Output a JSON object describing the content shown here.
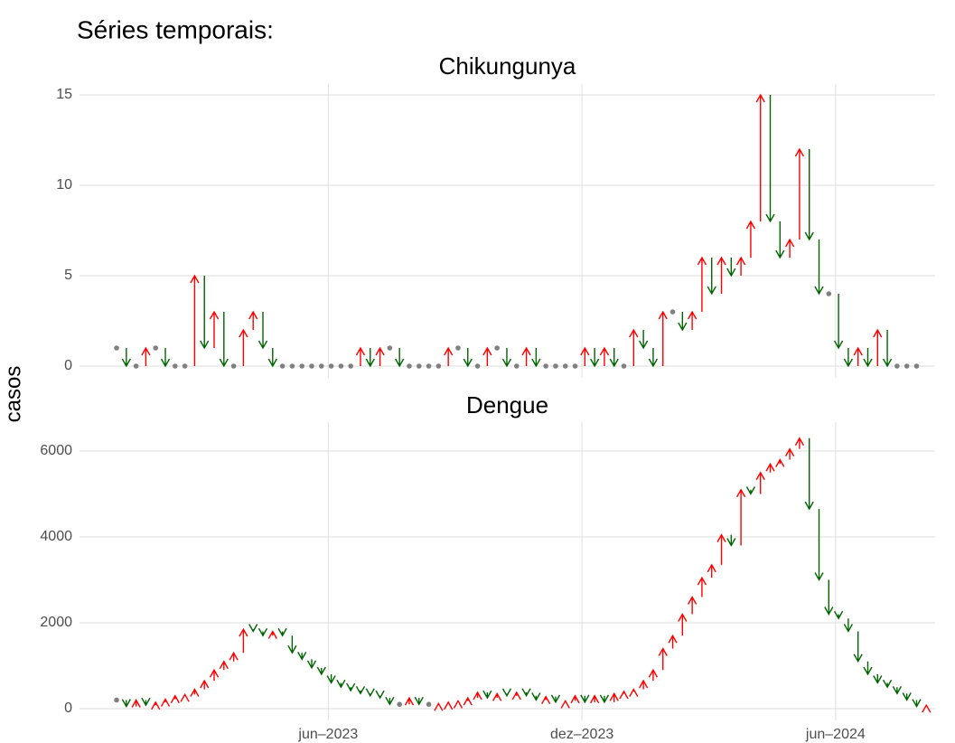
{
  "title": "Séries temporais:",
  "ylabel": "casos",
  "chart_data": [
    {
      "type": "arrow",
      "title": "Chikungunya",
      "x": [
        0,
        1,
        2,
        3,
        4,
        5,
        6,
        7,
        8,
        9,
        10,
        11,
        12,
        13,
        14,
        15,
        16,
        17,
        18,
        19,
        20,
        21,
        22,
        23,
        24,
        25,
        26,
        27,
        28,
        29,
        30,
        31,
        32,
        33,
        34,
        35,
        36,
        37,
        38,
        39,
        40,
        41,
        42,
        43,
        44,
        45,
        46,
        47,
        48,
        49,
        50,
        51,
        52,
        53,
        54,
        55,
        56,
        57,
        58,
        59,
        60,
        61,
        62,
        63,
        64,
        65,
        66,
        67,
        68,
        69,
        70,
        71,
        72,
        73,
        74,
        75,
        76,
        77,
        78,
        79,
        80,
        81,
        82
      ],
      "values": [
        1,
        0,
        0,
        1,
        1,
        0,
        0,
        0,
        5,
        1,
        3,
        0,
        0,
        2,
        3,
        1,
        0,
        0,
        0,
        0,
        0,
        0,
        0,
        0,
        0,
        1,
        0,
        1,
        1,
        0,
        0,
        0,
        0,
        0,
        1,
        1,
        0,
        0,
        1,
        1,
        0,
        0,
        1,
        0,
        0,
        0,
        0,
        0,
        1,
        0,
        1,
        0,
        0,
        2,
        1,
        0,
        3,
        3,
        2,
        3,
        6,
        4,
        6,
        5,
        6,
        8,
        15,
        8,
        6,
        7,
        12,
        7,
        4,
        4,
        1,
        0,
        1,
        0,
        2,
        0,
        0,
        0,
        0
      ],
      "colors": {
        "up": "#ff0000",
        "down": "#006400",
        "flat": "#808080"
      },
      "xlim": [
        -3.8,
        83.9
      ],
      "xticks": [
        21.7,
        47.7,
        73.7
      ],
      "ylim": [
        -0.65,
        15.6
      ],
      "yticks": [
        0,
        5,
        10,
        15
      ],
      "grid": true
    },
    {
      "type": "arrow",
      "title": "Dengue",
      "x": [
        0,
        1,
        2,
        3,
        4,
        5,
        6,
        7,
        8,
        9,
        10,
        11,
        12,
        13,
        14,
        15,
        16,
        17,
        18,
        19,
        20,
        21,
        22,
        23,
        24,
        25,
        26,
        27,
        28,
        29,
        30,
        31,
        32,
        33,
        34,
        35,
        36,
        37,
        38,
        39,
        40,
        41,
        42,
        43,
        44,
        45,
        46,
        47,
        48,
        49,
        50,
        51,
        52,
        53,
        54,
        55,
        56,
        57,
        58,
        59,
        60,
        61,
        62,
        63,
        64,
        65,
        66,
        67,
        68,
        69,
        70,
        71,
        72,
        73,
        74,
        75,
        76,
        77,
        78,
        79,
        80,
        81,
        82,
        83
      ],
      "values": [
        200,
        50,
        200,
        80,
        150,
        220,
        300,
        330,
        450,
        650,
        900,
        1100,
        1300,
        1850,
        1800,
        1700,
        1800,
        1700,
        1300,
        1150,
        950,
        800,
        600,
        500,
        420,
        350,
        300,
        250,
        100,
        100,
        250,
        100,
        100,
        120,
        150,
        180,
        250,
        380,
        250,
        350,
        300,
        380,
        300,
        200,
        280,
        150,
        180,
        300,
        150,
        300,
        150,
        350,
        400,
        450,
        650,
        900,
        1400,
        1700,
        2200,
        2600,
        3050,
        3350,
        4050,
        3800,
        5100,
        5000,
        5500,
        5700,
        5800,
        6050,
        6300,
        4650,
        3000,
        2200,
        2100,
        1800,
        1100,
        800,
        600,
        500,
        350,
        200,
        50,
        80
      ],
      "colors": {
        "up": "#ff0000",
        "down": "#006400",
        "flat": "#808080"
      },
      "xlim": [
        -3.8,
        83.9
      ],
      "xticks": [
        {
          "value": 21.7,
          "label": "jun–2023"
        },
        {
          "value": 47.7,
          "label": "dez–2023"
        },
        {
          "value": 73.7,
          "label": "jun–2024"
        }
      ],
      "ylim": [
        -274,
        6674
      ],
      "yticks": [
        0,
        2000,
        4000,
        6000
      ],
      "grid": true
    }
  ]
}
